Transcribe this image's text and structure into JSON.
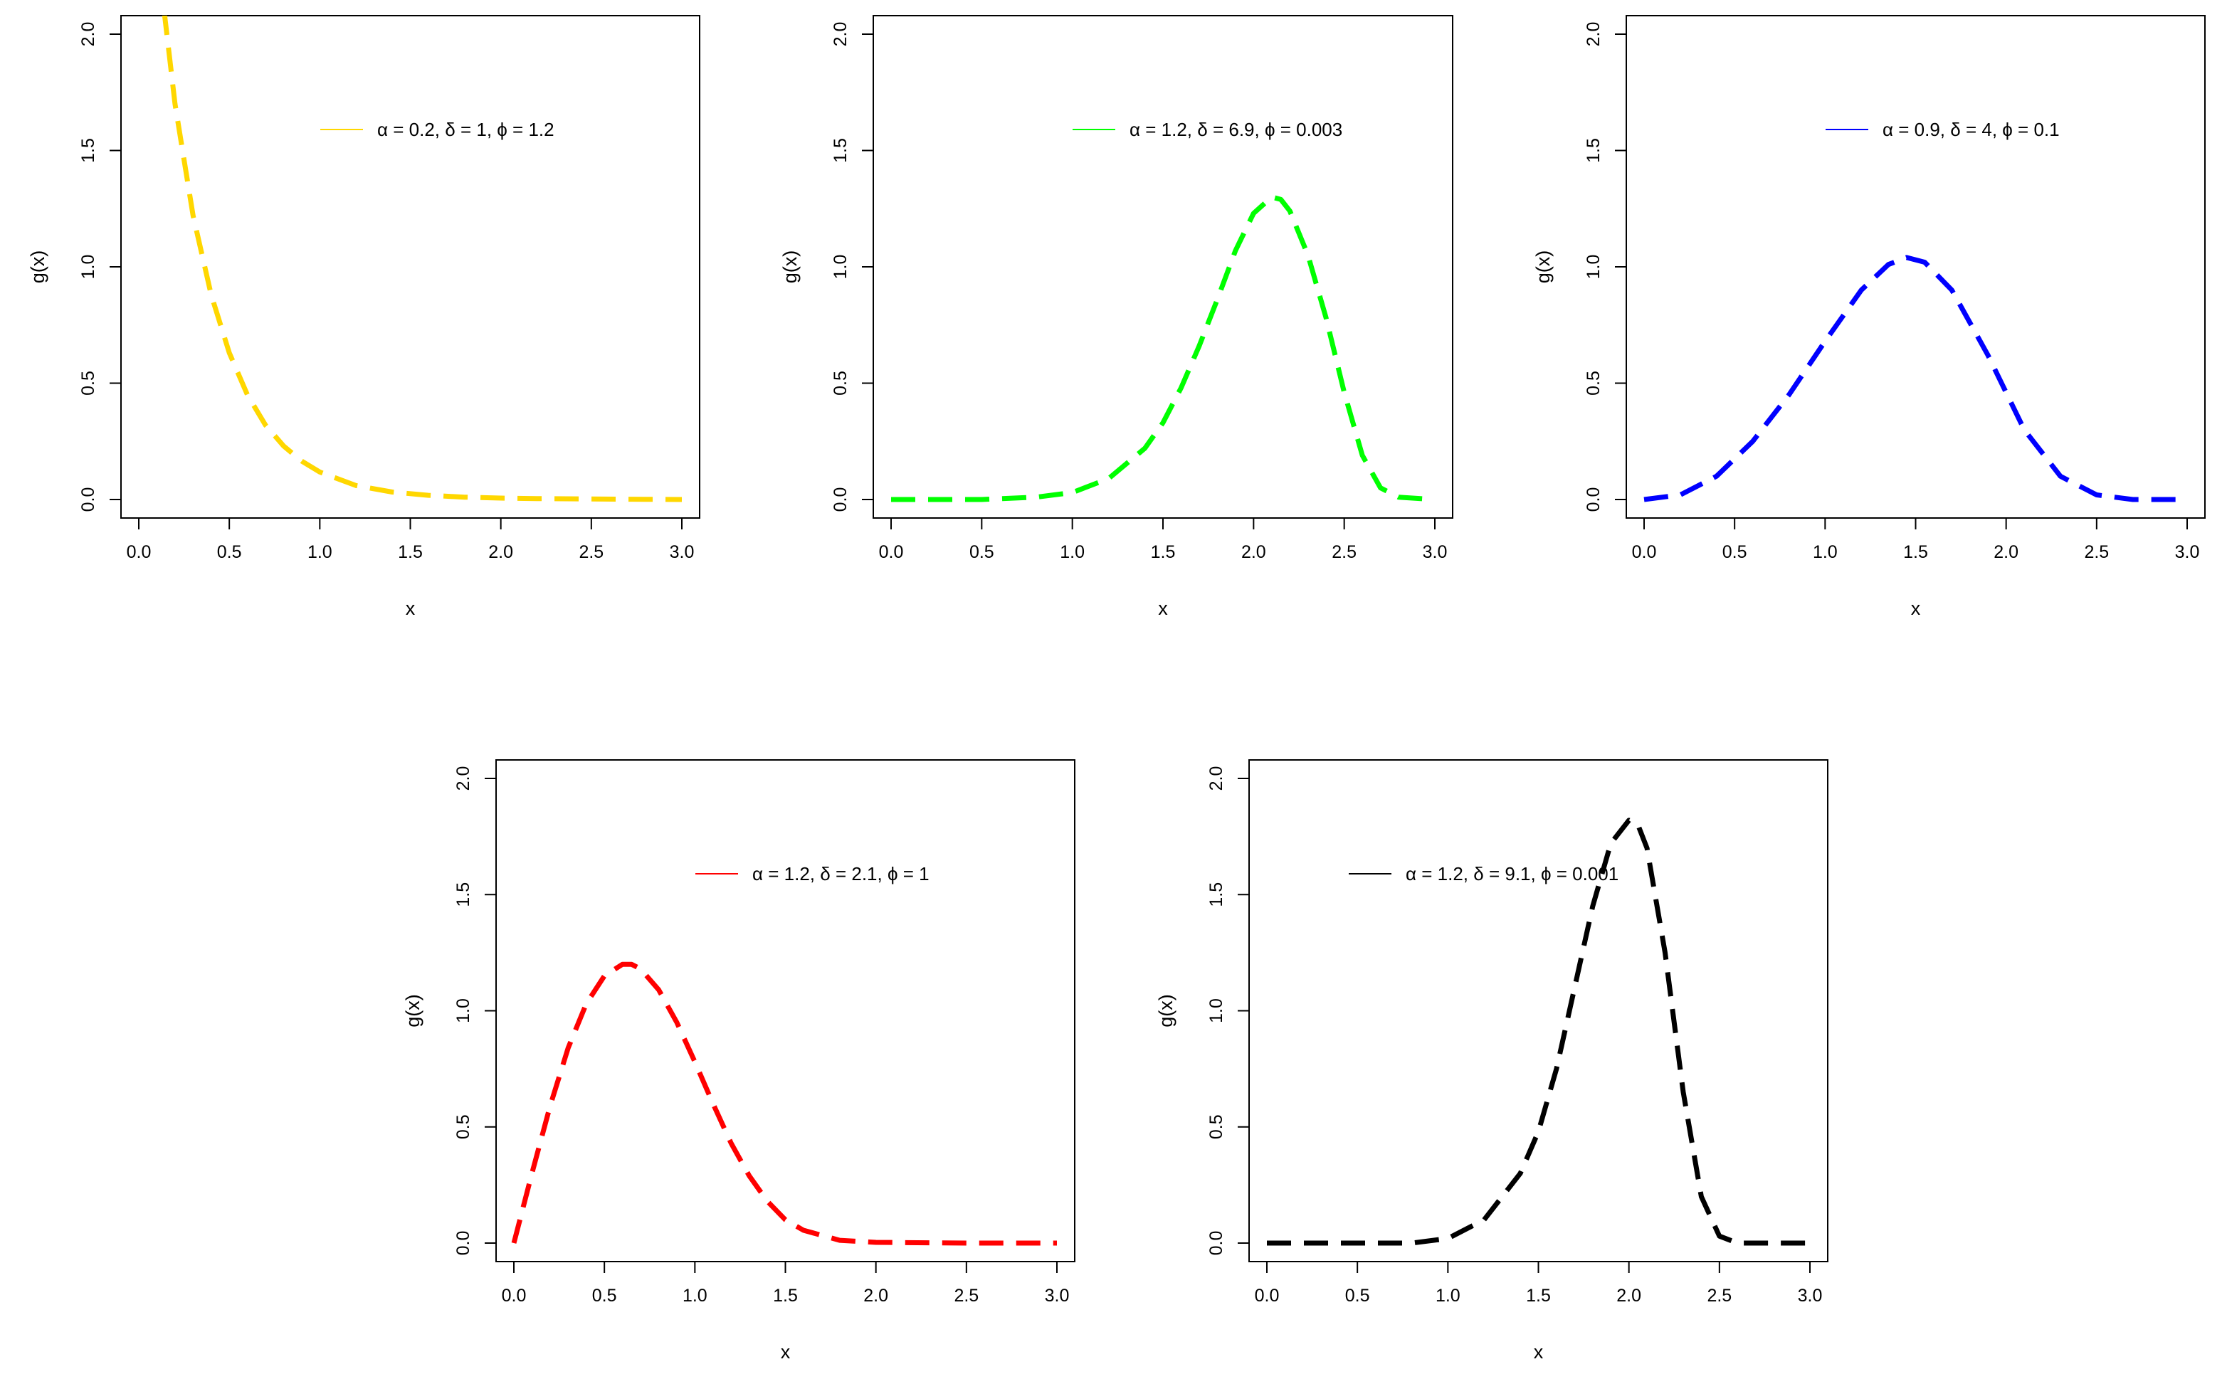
{
  "chart_data": [
    {
      "type": "line",
      "series": [
        {
          "name": "α = 0.2, δ = 1, ϕ = 1.2",
          "color": "#FFD700",
          "line_style": "dashed",
          "x": [
            0.14,
            0.2,
            0.3,
            0.4,
            0.5,
            0.6,
            0.7,
            0.8,
            0.9,
            1.0,
            1.2,
            1.4,
            1.6,
            1.8,
            2.0,
            2.2,
            2.5,
            2.8,
            3.0
          ],
          "y": [
            2.1,
            1.7,
            1.22,
            0.88,
            0.63,
            0.45,
            0.32,
            0.23,
            0.165,
            0.118,
            0.06,
            0.032,
            0.018,
            0.01,
            0.006,
            0.004,
            0.002,
            0.001,
            0.0
          ]
        }
      ],
      "xlabel": "x",
      "ylabel": "g(x)",
      "xlim": [
        0,
        3
      ],
      "ylim": [
        0,
        2
      ],
      "xticks": [
        "0.0",
        "0.5",
        "1.0",
        "1.5",
        "2.0",
        "2.5",
        "3.0"
      ],
      "yticks": [
        "0.0",
        "0.5",
        "1.0",
        "1.5",
        "2.0"
      ],
      "legend_position": "top-right"
    },
    {
      "type": "line",
      "series": [
        {
          "name": "α = 1.2, δ = 6.9, ϕ = 0.003",
          "color": "#00FF00",
          "line_style": "dashed",
          "x": [
            0.0,
            0.5,
            0.8,
            1.0,
            1.2,
            1.4,
            1.5,
            1.6,
            1.7,
            1.8,
            1.9,
            2.0,
            2.1,
            2.15,
            2.2,
            2.3,
            2.4,
            2.5,
            2.6,
            2.7,
            2.8,
            3.0
          ],
          "y": [
            0.0,
            0.0,
            0.01,
            0.03,
            0.09,
            0.22,
            0.33,
            0.48,
            0.66,
            0.86,
            1.07,
            1.23,
            1.3,
            1.29,
            1.24,
            1.05,
            0.78,
            0.46,
            0.19,
            0.05,
            0.01,
            0.0
          ]
        }
      ],
      "xlabel": "x",
      "ylabel": "g(x)",
      "xlim": [
        0,
        3
      ],
      "ylim": [
        0,
        2
      ],
      "xticks": [
        "0.0",
        "0.5",
        "1.0",
        "1.5",
        "2.0",
        "2.5",
        "3.0"
      ],
      "yticks": [
        "0.0",
        "0.5",
        "1.0",
        "1.5",
        "2.0"
      ],
      "legend_position": "top-right"
    },
    {
      "type": "line",
      "series": [
        {
          "name": "α = 0.9, δ = 4, ϕ = 0.1",
          "color": "#0000FF",
          "line_style": "dashed",
          "x": [
            0.0,
            0.2,
            0.4,
            0.6,
            0.8,
            1.0,
            1.2,
            1.35,
            1.45,
            1.55,
            1.7,
            1.9,
            2.1,
            2.3,
            2.5,
            2.7,
            3.0
          ],
          "y": [
            0.0,
            0.02,
            0.1,
            0.25,
            0.45,
            0.68,
            0.9,
            1.01,
            1.04,
            1.02,
            0.9,
            0.62,
            0.3,
            0.1,
            0.02,
            0.0,
            0.0
          ]
        }
      ],
      "xlabel": "x",
      "ylabel": "g(x)",
      "xlim": [
        0,
        3
      ],
      "ylim": [
        0,
        2
      ],
      "xticks": [
        "0.0",
        "0.5",
        "1.0",
        "1.5",
        "2.0",
        "2.5",
        "3.0"
      ],
      "yticks": [
        "0.0",
        "0.5",
        "1.0",
        "1.5",
        "2.0"
      ],
      "legend_position": "top-right"
    },
    {
      "type": "line",
      "series": [
        {
          "name": "α = 1.2, δ = 2.1, ϕ = 1",
          "color": "#FF0000",
          "line_style": "dashed",
          "x": [
            0.0,
            0.1,
            0.2,
            0.3,
            0.4,
            0.5,
            0.6,
            0.65,
            0.7,
            0.8,
            0.9,
            1.0,
            1.1,
            1.2,
            1.3,
            1.4,
            1.5,
            1.6,
            1.8,
            2.0,
            2.5,
            3.0
          ],
          "y": [
            0.0,
            0.3,
            0.59,
            0.84,
            1.03,
            1.15,
            1.2,
            1.2,
            1.18,
            1.09,
            0.95,
            0.78,
            0.6,
            0.43,
            0.29,
            0.18,
            0.1,
            0.055,
            0.012,
            0.003,
            0.0,
            0.0
          ]
        }
      ],
      "xlabel": "x",
      "ylabel": "g(x)",
      "xlim": [
        0,
        3
      ],
      "ylim": [
        0,
        2
      ],
      "xticks": [
        "0.0",
        "0.5",
        "1.0",
        "1.5",
        "2.0",
        "2.5",
        "3.0"
      ],
      "yticks": [
        "0.0",
        "0.5",
        "1.0",
        "1.5",
        "2.0"
      ],
      "legend_position": "top-right"
    },
    {
      "type": "line",
      "series": [
        {
          "name": "α = 1.2, δ = 9.1, ϕ = 0.001",
          "color": "#000000",
          "line_style": "dashed",
          "x": [
            0.0,
            0.8,
            1.0,
            1.2,
            1.4,
            1.5,
            1.6,
            1.7,
            1.8,
            1.9,
            2.0,
            2.05,
            2.1,
            2.2,
            2.3,
            2.4,
            2.5,
            2.6,
            3.0
          ],
          "y": [
            0.0,
            0.0,
            0.02,
            0.1,
            0.3,
            0.48,
            0.75,
            1.1,
            1.45,
            1.72,
            1.82,
            1.8,
            1.7,
            1.25,
            0.65,
            0.2,
            0.03,
            0.0,
            0.0
          ]
        }
      ],
      "xlabel": "x",
      "ylabel": "g(x)",
      "xlim": [
        0,
        3
      ],
      "ylim": [
        0,
        2
      ],
      "xticks": [
        "0.0",
        "0.5",
        "1.0",
        "1.5",
        "2.0",
        "2.5",
        "3.0"
      ],
      "yticks": [
        "0.0",
        "0.5",
        "1.0",
        "1.5",
        "2.0"
      ],
      "legend_position": "top-left"
    }
  ]
}
